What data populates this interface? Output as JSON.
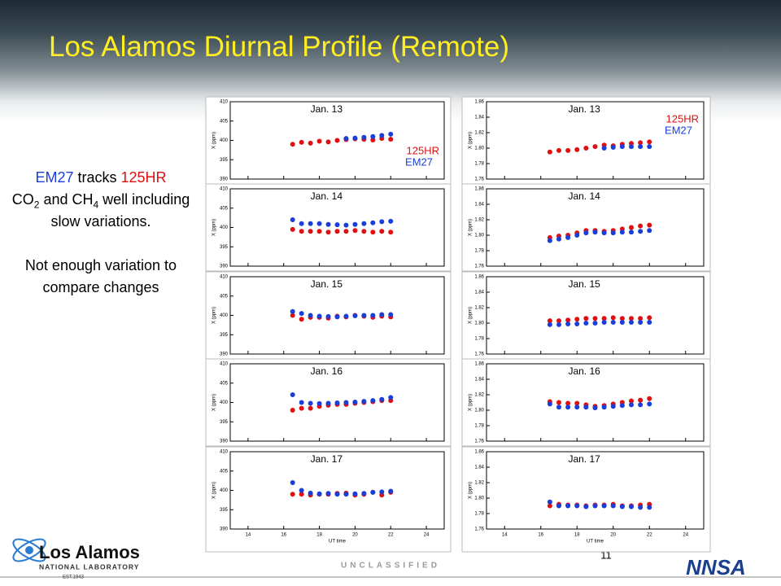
{
  "header": {
    "title": "Los Alamos Diurnal Profile (Remote)"
  },
  "sidebar": {
    "em27": "EM27",
    "tracks": " tracks ",
    "hr": "125HR",
    "co": "CO",
    "co_sub": "2",
    "and": " and CH",
    "ch_sub": "4",
    "rest": " well including slow variations.",
    "note": "Not enough variation to compare changes"
  },
  "footer": {
    "classification": "UNCLASSIFIED",
    "page": "11",
    "lab": "Los Alamos",
    "lab_sub": "NATIONAL LABORATORY",
    "est": "EST.1943",
    "agency": "NNSA"
  },
  "chart_data": [
    {
      "type": "scatter",
      "title": "Jan. 13",
      "ylabel": "X (ppm)",
      "legend": "lower right",
      "x": [
        16.5,
        17,
        17.5,
        18,
        18.5,
        19,
        19.5,
        20,
        20.5,
        21,
        21.5,
        22
      ],
      "xlim": [
        13,
        25
      ],
      "xticks": [
        14,
        16,
        18,
        20,
        22,
        24
      ],
      "ylim": [
        390,
        410
      ],
      "yticks": [
        390,
        395,
        400,
        405,
        410
      ],
      "series": [
        {
          "name": "125HR",
          "color": "#e01010",
          "values": [
            399,
            399.5,
            399.3,
            399.8,
            399.6,
            400,
            400.2,
            400.4,
            400.3,
            400.1,
            400.5,
            400.3
          ]
        },
        {
          "name": "EM27",
          "color": "#1a3fd8",
          "values": [
            null,
            null,
            null,
            null,
            null,
            null,
            400.5,
            400.6,
            400.8,
            401,
            401.3,
            401.6
          ]
        }
      ]
    },
    {
      "type": "scatter",
      "title": "Jan. 13",
      "ylabel": "X (ppm)",
      "legend": "upper right",
      "x": [
        16.5,
        17,
        17.5,
        18,
        18.5,
        19,
        19.5,
        20,
        20.5,
        21,
        21.5,
        22
      ],
      "xlim": [
        13,
        25
      ],
      "xticks": [
        14,
        16,
        18,
        20,
        22,
        24
      ],
      "ylim": [
        1.76,
        1.86
      ],
      "yticks": [
        {
          "value": 1.76,
          "label": "1.76"
        },
        {
          "value": 1.78,
          "label": "1.78"
        },
        {
          "value": 1.8,
          "label": "1.80"
        },
        {
          "value": 1.82,
          "label": "1.82"
        },
        {
          "value": 1.84,
          "label": "1.84"
        },
        {
          "value": 1.86,
          "label": "1.86"
        }
      ],
      "series": [
        {
          "name": "125HR",
          "color": "#e01010",
          "values": [
            1.795,
            1.797,
            1.797,
            1.798,
            1.8,
            1.802,
            1.804,
            1.803,
            1.805,
            1.806,
            1.807,
            1.808
          ]
        },
        {
          "name": "EM27",
          "color": "#1a3fd8",
          "values": [
            null,
            null,
            null,
            null,
            null,
            null,
            1.8,
            1.801,
            1.802,
            1.802,
            1.802,
            1.802
          ]
        }
      ]
    },
    {
      "type": "scatter",
      "title": "Jan. 14",
      "ylabel": "X (ppm)",
      "x": [
        16.5,
        17,
        17.5,
        18,
        18.5,
        19,
        19.5,
        20,
        20.5,
        21,
        21.5,
        22
      ],
      "xlim": [
        13,
        25
      ],
      "xticks": [
        14,
        16,
        18,
        20,
        22,
        24
      ],
      "ylim": [
        390,
        410
      ],
      "yticks": [
        390,
        395,
        400,
        405,
        410
      ],
      "series": [
        {
          "color": "#e01010",
          "values": [
            399.5,
            399,
            399,
            399,
            398.8,
            399,
            399,
            399.2,
            399,
            398.8,
            399,
            398.8
          ]
        },
        {
          "color": "#1a3fd8",
          "values": [
            402,
            401,
            401,
            401,
            400.8,
            400.7,
            400.6,
            400.8,
            401,
            401.2,
            401.5,
            401.6
          ]
        }
      ]
    },
    {
      "type": "scatter",
      "title": "Jan. 14",
      "ylabel": "X (ppm)",
      "x": [
        16.5,
        17,
        17.5,
        18,
        18.5,
        19,
        19.5,
        20,
        20.5,
        21,
        21.5,
        22
      ],
      "xlim": [
        13,
        25
      ],
      "xticks": [
        14,
        16,
        18,
        20,
        22,
        24
      ],
      "ylim": [
        1.76,
        1.86
      ],
      "yticks": [
        {
          "value": 1.76,
          "label": "1.76"
        },
        {
          "value": 1.78,
          "label": "1.78"
        },
        {
          "value": 1.8,
          "label": "1.80"
        },
        {
          "value": 1.82,
          "label": "1.82"
        },
        {
          "value": 1.84,
          "label": "1.84"
        },
        {
          "value": 1.86,
          "label": "1.86"
        }
      ],
      "series": [
        {
          "color": "#e01010",
          "values": [
            1.797,
            1.799,
            1.8,
            1.803,
            1.806,
            1.806,
            1.805,
            1.806,
            1.808,
            1.81,
            1.812,
            1.813
          ]
        },
        {
          "color": "#1a3fd8",
          "values": [
            1.793,
            1.795,
            1.797,
            1.8,
            1.803,
            1.804,
            1.803,
            1.803,
            1.804,
            1.804,
            1.805,
            1.806
          ]
        }
      ]
    },
    {
      "type": "scatter",
      "title": "Jan. 15",
      "ylabel": "X (ppm)",
      "x": [
        16.5,
        17,
        17.5,
        18,
        18.5,
        19,
        19.5,
        20,
        20.5,
        21,
        21.5,
        22
      ],
      "xlim": [
        13,
        25
      ],
      "xticks": [
        14,
        16,
        18,
        20,
        22,
        24
      ],
      "ylim": [
        390,
        410
      ],
      "yticks": [
        390,
        395,
        400,
        405,
        410
      ],
      "series": [
        {
          "color": "#e01010",
          "values": [
            400,
            399,
            399.5,
            399.5,
            399.3,
            399.8,
            399.6,
            400,
            399.8,
            399.5,
            399.8,
            399.6
          ]
        },
        {
          "color": "#1a3fd8",
          "values": [
            401,
            400.5,
            400,
            399.8,
            399.7,
            399.6,
            399.8,
            399.9,
            400,
            400,
            400.2,
            400.2
          ]
        }
      ]
    },
    {
      "type": "scatter",
      "title": "Jan. 15",
      "ylabel": "X (ppm)",
      "x": [
        16.5,
        17,
        17.5,
        18,
        18.5,
        19,
        19.5,
        20,
        20.5,
        21,
        21.5,
        22
      ],
      "xlim": [
        13,
        25
      ],
      "xticks": [
        14,
        16,
        18,
        20,
        22,
        24
      ],
      "ylim": [
        1.76,
        1.86
      ],
      "yticks": [
        {
          "value": 1.76,
          "label": "1.76"
        },
        {
          "value": 1.78,
          "label": "1.78"
        },
        {
          "value": 1.8,
          "label": "1.80"
        },
        {
          "value": 1.82,
          "label": "1.82"
        },
        {
          "value": 1.84,
          "label": "1.84"
        },
        {
          "value": 1.86,
          "label": "1.86"
        }
      ],
      "series": [
        {
          "color": "#e01010",
          "values": [
            1.803,
            1.803,
            1.804,
            1.805,
            1.806,
            1.806,
            1.806,
            1.807,
            1.806,
            1.806,
            1.806,
            1.807
          ]
        },
        {
          "color": "#1a3fd8",
          "values": [
            1.798,
            1.798,
            1.799,
            1.799,
            1.8,
            1.8,
            1.801,
            1.801,
            1.801,
            1.801,
            1.801,
            1.801
          ]
        }
      ]
    },
    {
      "type": "scatter",
      "title": "Jan. 16",
      "ylabel": "X (ppm)",
      "x": [
        16.5,
        17,
        17.5,
        18,
        18.5,
        19,
        19.5,
        20,
        20.5,
        21,
        21.5,
        22
      ],
      "xlim": [
        13,
        25
      ],
      "xticks": [
        14,
        16,
        18,
        20,
        22,
        24
      ],
      "ylim": [
        390,
        410
      ],
      "yticks": [
        390,
        395,
        400,
        405,
        410
      ],
      "series": [
        {
          "color": "#e01010",
          "values": [
            398,
            398.5,
            398.5,
            399,
            399.3,
            399.5,
            399.5,
            399.8,
            400,
            400.2,
            400.5,
            400.5
          ]
        },
        {
          "color": "#1a3fd8",
          "values": [
            402,
            400,
            399.8,
            399.7,
            399.8,
            399.9,
            400,
            400.1,
            400.3,
            400.5,
            400.8,
            401.3
          ]
        }
      ]
    },
    {
      "type": "scatter",
      "title": "Jan. 16",
      "ylabel": "X (ppm)",
      "x": [
        16.5,
        17,
        17.5,
        18,
        18.5,
        19,
        19.5,
        20,
        20.5,
        21,
        21.5,
        22
      ],
      "xlim": [
        13,
        25
      ],
      "xticks": [
        14,
        16,
        18,
        20,
        22,
        24
      ],
      "ylim": [
        1.76,
        1.86
      ],
      "yticks": [
        {
          "value": 1.76,
          "label": "1.76"
        },
        {
          "value": 1.78,
          "label": "1.78"
        },
        {
          "value": 1.8,
          "label": "1.80"
        },
        {
          "value": 1.82,
          "label": "1.82"
        },
        {
          "value": 1.84,
          "label": "1.84"
        },
        {
          "value": 1.86,
          "label": "1.86"
        }
      ],
      "series": [
        {
          "color": "#e01010",
          "values": [
            1.811,
            1.81,
            1.809,
            1.809,
            1.807,
            1.805,
            1.806,
            1.808,
            1.81,
            1.812,
            1.813,
            1.815
          ]
        },
        {
          "color": "#1a3fd8",
          "values": [
            1.808,
            1.804,
            1.804,
            1.804,
            1.804,
            1.803,
            1.804,
            1.805,
            1.806,
            1.807,
            1.807,
            1.808
          ]
        }
      ]
    },
    {
      "type": "scatter",
      "title": "Jan. 17",
      "ylabel": "X (ppm)",
      "xlabel": "UT time",
      "x": [
        16.5,
        17,
        17.5,
        18,
        18.5,
        19,
        19.5,
        20,
        20.5,
        21,
        21.5,
        22
      ],
      "xlim": [
        13,
        25
      ],
      "xticks": [
        14,
        16,
        18,
        20,
        22,
        24
      ],
      "ylim": [
        390,
        410
      ],
      "yticks": [
        390,
        395,
        400,
        405,
        410
      ],
      "series": [
        {
          "color": "#e01010",
          "values": [
            399,
            399,
            398.8,
            399,
            399,
            399.2,
            399.3,
            398.8,
            399,
            399.5,
            398.8,
            399.5
          ]
        },
        {
          "color": "#1a3fd8",
          "values": [
            402,
            400,
            399.3,
            399.1,
            399.2,
            399,
            399,
            399.1,
            399.2,
            399.5,
            399.6,
            399.8
          ]
        }
      ]
    },
    {
      "type": "scatter",
      "title": "Jan. 17",
      "ylabel": "X (ppm)",
      "xlabel": "UT time",
      "x": [
        16.5,
        17,
        17.5,
        18,
        18.5,
        19,
        19.5,
        20,
        20.5,
        21,
        21.5,
        22
      ],
      "xlim": [
        13,
        25
      ],
      "xticks": [
        14,
        16,
        18,
        20,
        22,
        24
      ],
      "ylim": [
        1.76,
        1.86
      ],
      "yticks": [
        {
          "value": 1.76,
          "label": "1.76"
        },
        {
          "value": 1.78,
          "label": "1.78"
        },
        {
          "value": 1.8,
          "label": "1.80"
        },
        {
          "value": 1.82,
          "label": "1.82"
        },
        {
          "value": 1.84,
          "label": "1.84"
        },
        {
          "value": 1.86,
          "label": "1.86"
        }
      ],
      "series": [
        {
          "color": "#e01010",
          "values": [
            1.79,
            1.792,
            1.791,
            1.791,
            1.79,
            1.791,
            1.791,
            1.792,
            1.79,
            1.79,
            1.791,
            1.792
          ]
        },
        {
          "color": "#1a3fd8",
          "values": [
            1.795,
            1.79,
            1.79,
            1.79,
            1.789,
            1.79,
            1.79,
            1.79,
            1.789,
            1.789,
            1.788,
            1.788
          ]
        }
      ]
    }
  ]
}
